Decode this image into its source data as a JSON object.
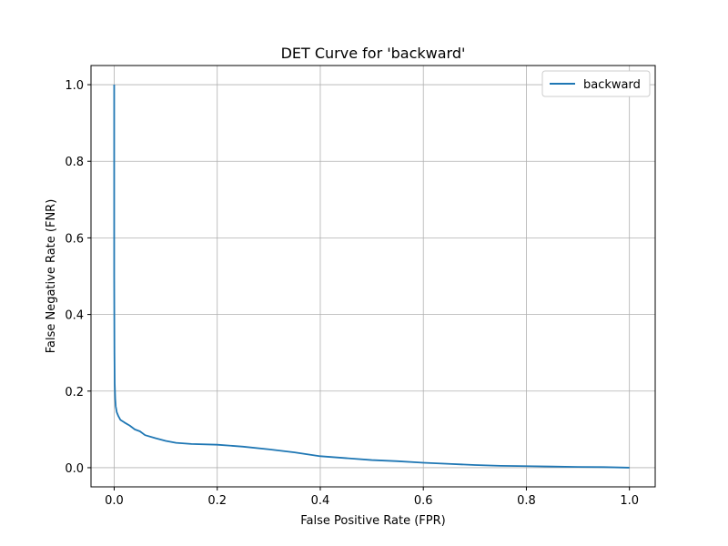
{
  "chart_data": {
    "type": "line",
    "title": "DET Curve for 'backward'",
    "xlabel": "False Positive Rate (FPR)",
    "ylabel": "False Negative Rate (FNR)",
    "xlim": [
      -0.045,
      1.05
    ],
    "ylim": [
      -0.05,
      1.05
    ],
    "xticks": [
      0.0,
      0.2,
      0.4,
      0.6,
      0.8,
      1.0
    ],
    "yticks": [
      0.0,
      0.2,
      0.4,
      0.6,
      0.8,
      1.0
    ],
    "xtick_labels": [
      "0.0",
      "0.2",
      "0.4",
      "0.6",
      "0.8",
      "1.0"
    ],
    "ytick_labels": [
      "0.0",
      "0.2",
      "0.4",
      "0.6",
      "0.8",
      "1.0"
    ],
    "grid": true,
    "legend_position": "top-right",
    "series": [
      {
        "name": "backward",
        "color": "#1f77b4",
        "x": [
          0.0,
          0.0,
          0.0005,
          0.001,
          0.002,
          0.003,
          0.005,
          0.008,
          0.012,
          0.02,
          0.03,
          0.04,
          0.05,
          0.06,
          0.08,
          0.1,
          0.12,
          0.15,
          0.2,
          0.25,
          0.3,
          0.35,
          0.4,
          0.45,
          0.5,
          0.55,
          0.6,
          0.65,
          0.7,
          0.75,
          0.8,
          0.85,
          0.9,
          0.95,
          1.0
        ],
        "y": [
          1.0,
          0.5,
          0.3,
          0.22,
          0.18,
          0.16,
          0.145,
          0.135,
          0.125,
          0.118,
          0.11,
          0.1,
          0.095,
          0.085,
          0.077,
          0.07,
          0.065,
          0.062,
          0.06,
          0.055,
          0.048,
          0.04,
          0.03,
          0.025,
          0.02,
          0.017,
          0.013,
          0.01,
          0.007,
          0.005,
          0.004,
          0.003,
          0.002,
          0.0015,
          0.0
        ]
      }
    ]
  }
}
